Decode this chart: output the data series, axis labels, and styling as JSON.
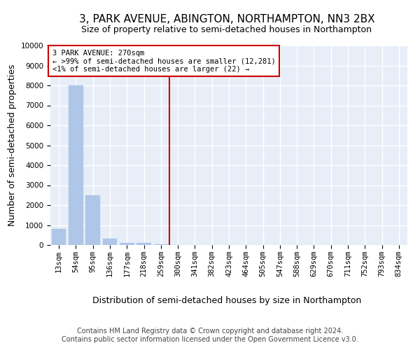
{
  "title": "3, PARK AVENUE, ABINGTON, NORTHAMPTON, NN3 2BX",
  "subtitle": "Size of property relative to semi-detached houses in Northampton",
  "xlabel": "Distribution of semi-detached houses by size in Northampton",
  "ylabel": "Number of semi-detached properties",
  "footnote": "Contains HM Land Registry data © Crown copyright and database right 2024.\nContains public sector information licensed under the Open Government Licence v3.0.",
  "categories": [
    "13sqm",
    "54sqm",
    "95sqm",
    "136sqm",
    "177sqm",
    "218sqm",
    "259sqm",
    "300sqm",
    "341sqm",
    "382sqm",
    "423sqm",
    "464sqm",
    "505sqm",
    "547sqm",
    "588sqm",
    "629sqm",
    "670sqm",
    "711sqm",
    "752sqm",
    "793sqm",
    "834sqm"
  ],
  "values": [
    800,
    8000,
    2500,
    300,
    100,
    100,
    50,
    0,
    0,
    0,
    0,
    0,
    0,
    0,
    0,
    0,
    0,
    0,
    0,
    0,
    0
  ],
  "bar_color": "#aec6e8",
  "bar_edge_color": "#aec6e8",
  "ylim": [
    0,
    10000
  ],
  "yticks": [
    0,
    1000,
    2000,
    3000,
    4000,
    5000,
    6000,
    7000,
    8000,
    9000,
    10000
  ],
  "vline_x": 6.5,
  "annotation_text": "3 PARK AVENUE: 270sqm\n← >99% of semi-detached houses are smaller (12,281)\n<1% of semi-detached houses are larger (22) →",
  "annotation_box_color": "#ffffff",
  "annotation_border_color": "#cc0000",
  "vline_color": "#cc0000",
  "background_color": "#e8eef8",
  "grid_color": "#ffffff",
  "title_fontsize": 11,
  "label_fontsize": 9,
  "tick_fontsize": 7.5,
  "footnote_fontsize": 7
}
